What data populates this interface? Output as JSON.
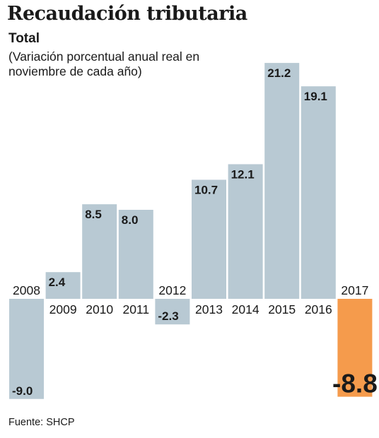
{
  "title": "Recaudación tributaria",
  "subtitle": "Total",
  "note": "(Variación porcentual anual real en noviembre de cada año)",
  "source": "Fuente: SHCP",
  "colors": {
    "bar": "#b8c9d3",
    "highlight": "#f59b4c",
    "text": "#1a1a1a"
  },
  "chart_data": {
    "type": "bar",
    "title": "Recaudación tributaria",
    "subtitle": "Total",
    "ylabel": "",
    "xlabel": "",
    "categories": [
      "2008",
      "2009",
      "2010",
      "2011",
      "2012",
      "2013",
      "2014",
      "2015",
      "2016",
      "2017"
    ],
    "values": [
      -9.0,
      2.4,
      8.5,
      8.0,
      -2.3,
      10.7,
      12.1,
      21.2,
      19.1,
      -8.8
    ],
    "value_labels": [
      "-9.0",
      "2.4",
      "8.5",
      "8.0",
      "-2.3",
      "10.7",
      "12.1",
      "21.2",
      "19.1",
      "-8.8"
    ],
    "highlight_category": "2017",
    "grid": false,
    "ylim": [
      -9.5,
      22
    ]
  }
}
